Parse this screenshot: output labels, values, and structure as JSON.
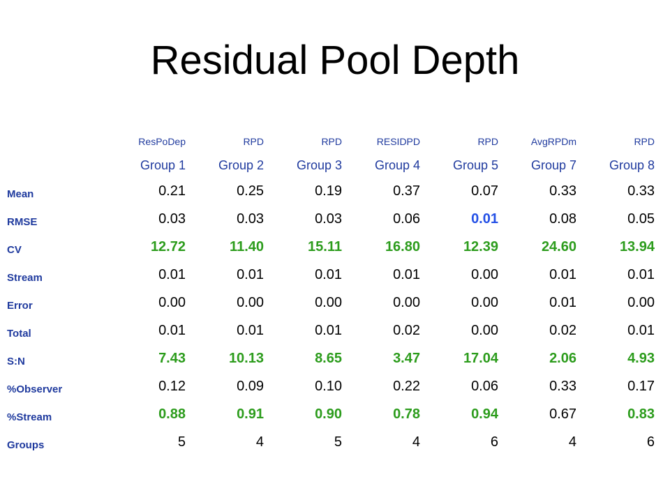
{
  "title": "Residual Pool Depth",
  "colors": {
    "label_blue": "#1f3a9e",
    "highlight_green": "#2c9c1c",
    "highlight_blue": "#2450e6",
    "text": "#000000"
  },
  "columns": [
    {
      "code": "ResPoDep",
      "group": "Group 1"
    },
    {
      "code": "RPD",
      "group": "Group 2"
    },
    {
      "code": "RPD",
      "group": "Group 3"
    },
    {
      "code": "RESIDPD",
      "group": "Group 4"
    },
    {
      "code": "RPD",
      "group": "Group 5"
    },
    {
      "code": "AvgRPDm",
      "group": "Group 7"
    },
    {
      "code": "RPD",
      "group": "Group 8"
    }
  ],
  "rows": [
    {
      "label": "Mean",
      "values": [
        "0.21",
        "0.25",
        "0.19",
        "0.37",
        "0.07",
        "0.33",
        "0.33"
      ],
      "styles": [
        "",
        "",
        "",
        "",
        "",
        "",
        ""
      ]
    },
    {
      "label": "RMSE",
      "values": [
        "0.03",
        "0.03",
        "0.03",
        "0.06",
        "0.01",
        "0.08",
        "0.05"
      ],
      "styles": [
        "",
        "",
        "",
        "",
        "blue",
        "",
        ""
      ]
    },
    {
      "label": "CV",
      "values": [
        "12.72",
        "11.40",
        "15.11",
        "16.80",
        "12.39",
        "24.60",
        "13.94"
      ],
      "styles": [
        "green",
        "green",
        "green",
        "green",
        "green",
        "green",
        "green"
      ]
    },
    {
      "label": "Stream",
      "values": [
        "0.01",
        "0.01",
        "0.01",
        "0.01",
        "0.00",
        "0.01",
        "0.01"
      ],
      "styles": [
        "",
        "",
        "",
        "",
        "",
        "",
        ""
      ]
    },
    {
      "label": "Error",
      "values": [
        "0.00",
        "0.00",
        "0.00",
        "0.00",
        "0.00",
        "0.01",
        "0.00"
      ],
      "styles": [
        "",
        "",
        "",
        "",
        "",
        "",
        ""
      ]
    },
    {
      "label": "Total",
      "values": [
        "0.01",
        "0.01",
        "0.01",
        "0.02",
        "0.00",
        "0.02",
        "0.01"
      ],
      "styles": [
        "",
        "",
        "",
        "",
        "",
        "",
        ""
      ]
    },
    {
      "label": "S:N",
      "values": [
        "7.43",
        "10.13",
        "8.65",
        "3.47",
        "17.04",
        "2.06",
        "4.93"
      ],
      "styles": [
        "green",
        "green",
        "green",
        "green",
        "green",
        "green",
        "green"
      ]
    },
    {
      "label": "%Observer",
      "values": [
        "0.12",
        "0.09",
        "0.10",
        "0.22",
        "0.06",
        "0.33",
        "0.17"
      ],
      "styles": [
        "",
        "",
        "",
        "",
        "",
        "",
        ""
      ]
    },
    {
      "label": "%Stream",
      "values": [
        "0.88",
        "0.91",
        "0.90",
        "0.78",
        "0.94",
        "0.67",
        "0.83"
      ],
      "styles": [
        "green",
        "green",
        "green",
        "green",
        "green",
        "",
        "green"
      ]
    },
    {
      "label": "Groups",
      "values": [
        "5",
        "4",
        "5",
        "4",
        "6",
        "4",
        "6"
      ],
      "styles": [
        "",
        "",
        "",
        "",
        "",
        "",
        ""
      ]
    }
  ]
}
